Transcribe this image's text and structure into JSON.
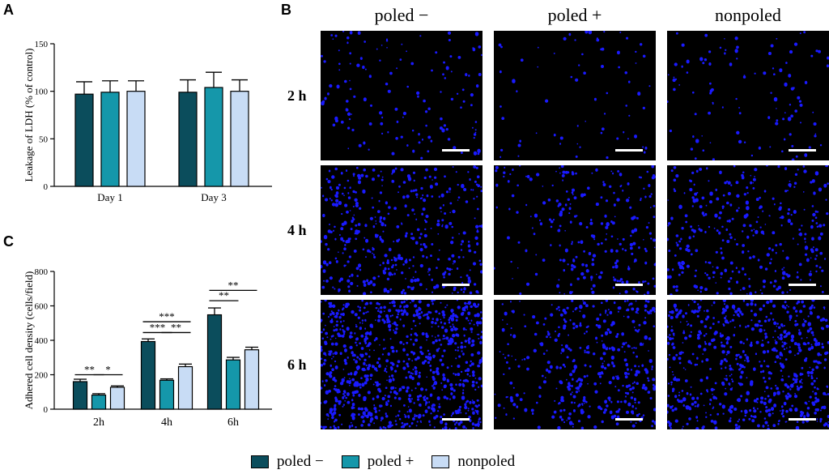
{
  "panels": {
    "a_letter": "A",
    "b_letter": "B",
    "c_letter": "C"
  },
  "colors": {
    "poled_minus": "#0b4d5c",
    "poled_plus": "#1597aa",
    "nonpoled": "#c8dcf5",
    "cell_dot": "#1a1aff"
  },
  "chart_data": [
    {
      "id": "A",
      "type": "bar",
      "ylabel": "Leakage of LDH (% of control)",
      "xlabel": "",
      "categories": [
        "Day 1",
        "Day 3"
      ],
      "ylim": [
        0,
        150
      ],
      "yticks": [
        0,
        50,
        100,
        150
      ],
      "series": [
        {
          "name": "poled −",
          "values": [
            97,
            99
          ],
          "errors": [
            13,
            13
          ]
        },
        {
          "name": "poled +",
          "values": [
            99,
            104
          ],
          "errors": [
            12,
            16
          ]
        },
        {
          "name": "nonpoled",
          "values": [
            100,
            100
          ],
          "errors": [
            11,
            12
          ]
        }
      ],
      "annotations": []
    },
    {
      "id": "C",
      "type": "bar",
      "ylabel": "Adhered cell density (cells/field)",
      "xlabel": "",
      "categories": [
        "2h",
        "4h",
        "6h"
      ],
      "ylim": [
        0,
        800
      ],
      "yticks": [
        0,
        200,
        400,
        600,
        800
      ],
      "series": [
        {
          "name": "poled −",
          "values": [
            160,
            393,
            548
          ],
          "errors": [
            14,
            15,
            40
          ]
        },
        {
          "name": "poled +",
          "values": [
            82,
            168,
            286
          ],
          "errors": [
            8,
            8,
            15
          ]
        },
        {
          "name": "nonpoled",
          "values": [
            127,
            247,
            345
          ],
          "errors": [
            8,
            15,
            15
          ]
        }
      ],
      "annotations": [
        {
          "text": "**",
          "group": 0,
          "from": 0,
          "to": 1,
          "y": 200
        },
        {
          "text": "*",
          "group": 0,
          "from": 1,
          "to": 2,
          "y": 200
        },
        {
          "text": "***",
          "group": 1,
          "from": 0,
          "to": 2,
          "y": 508
        },
        {
          "text": "***",
          "group": 1,
          "from": 0,
          "to": 1,
          "y": 445
        },
        {
          "text": "**",
          "group": 1,
          "from": 1,
          "to": 2,
          "y": 445
        },
        {
          "text": "**",
          "group": 2,
          "from": 0,
          "to": 2,
          "y": 690
        },
        {
          "text": "**",
          "group": 2,
          "from": 0,
          "to": 1,
          "y": 630
        }
      ]
    }
  ],
  "micrographs": {
    "columns": [
      "poled −",
      "poled +",
      "nonpoled"
    ],
    "rows": [
      "2 h",
      "4 h",
      "6 h"
    ],
    "density": [
      [
        140,
        70,
        110
      ],
      [
        420,
        250,
        330
      ],
      [
        900,
        420,
        650
      ]
    ]
  },
  "legend": [
    "poled −",
    "poled +",
    "nonpoled"
  ]
}
